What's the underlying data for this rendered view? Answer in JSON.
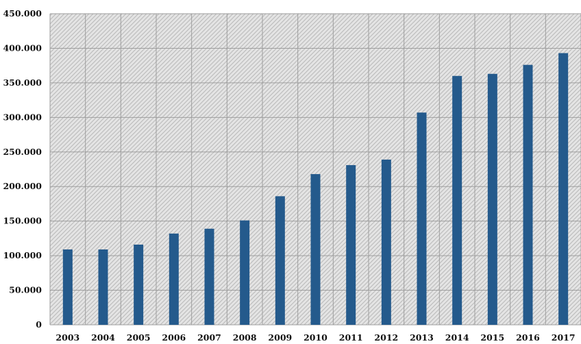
{
  "chart_data": {
    "type": "bar",
    "categories": [
      "2003",
      "2004",
      "2005",
      "2006",
      "2007",
      "2008",
      "2009",
      "2010",
      "2011",
      "2012",
      "2013",
      "2014",
      "2015",
      "2016",
      "2017"
    ],
    "values": [
      109000,
      109000,
      116000,
      132000,
      139000,
      151000,
      186000,
      218000,
      231000,
      239000,
      307000,
      360000,
      363000,
      376000,
      393000
    ],
    "yticks": [
      "0",
      "50.000",
      "100.000",
      "150.000",
      "200.000",
      "250.000",
      "300.000",
      "350.000",
      "400.000",
      "450.000"
    ],
    "ylim": [
      0,
      450000
    ],
    "grid": true,
    "colors": {
      "bar": "#245a8c",
      "plot_background": "#e4e4e4",
      "hatch": "#b9b9b9",
      "grid": "#9e9e9e"
    }
  }
}
